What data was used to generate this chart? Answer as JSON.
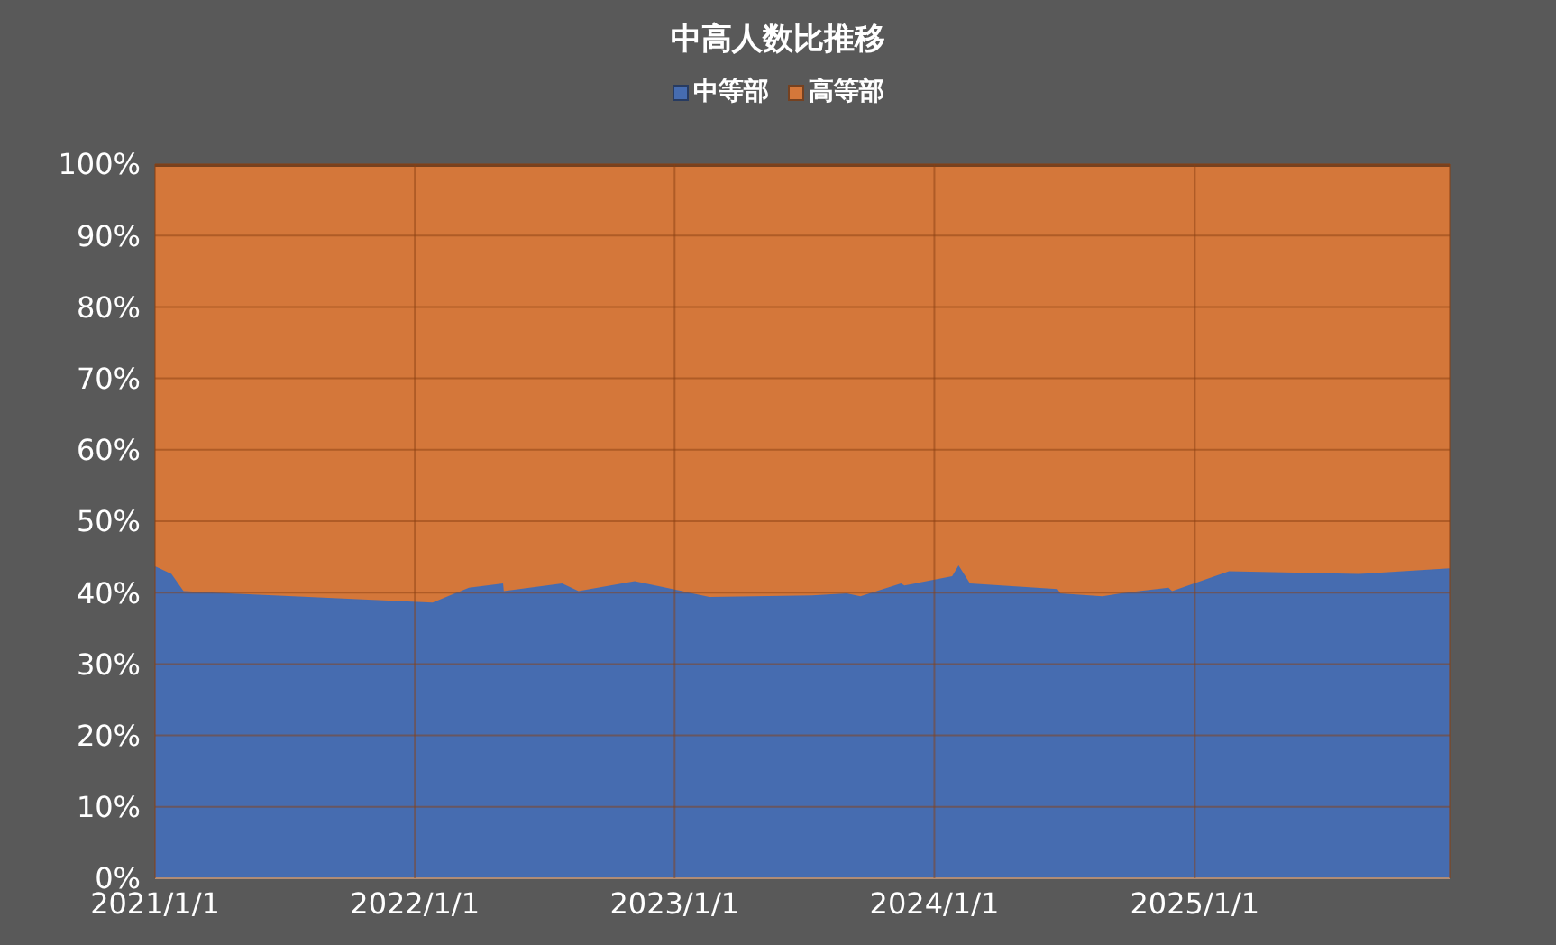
{
  "chart_data": {
    "type": "area",
    "title": "中高人数比推移",
    "stacked": true,
    "grid": true,
    "legend": "top",
    "x": [
      "2021-01-01",
      "2021-01-24",
      "2021-02-10",
      "2022-01-26",
      "2022-03-18",
      "2022-05-05",
      "2022-05-06",
      "2022-07-27",
      "2022-08-19",
      "2022-11-06",
      "2023-02-19",
      "2023-07-13",
      "2023-08-31",
      "2023-09-19",
      "2023-11-15",
      "2023-11-20",
      "2024-01-26",
      "2024-02-04",
      "2024-02-20",
      "2024-06-22",
      "2024-06-26",
      "2024-08-24",
      "2024-09-19",
      "2024-11-25",
      "2024-11-30",
      "2025-02-18",
      "2025-08-19",
      "2025-12-25"
    ],
    "series": [
      {
        "name": "中等部",
        "color": "#466cb0",
        "values": [
          43.7,
          42.6,
          40.2,
          38.6,
          40.7,
          41.3,
          40.2,
          41.3,
          40.2,
          41.6,
          39.4,
          39.6,
          39.9,
          39.5,
          41.3,
          41.0,
          42.3,
          43.8,
          41.3,
          40.5,
          39.9,
          39.5,
          39.9,
          40.7,
          40.2,
          43.0,
          42.6,
          43.4
        ]
      },
      {
        "name": "高等部",
        "color": "#d4773a",
        "values": [
          56.3,
          57.4,
          59.8,
          61.4,
          59.3,
          58.7,
          59.8,
          58.7,
          59.8,
          58.4,
          60.6,
          60.4,
          60.1,
          60.5,
          58.7,
          59.0,
          57.7,
          56.2,
          58.7,
          59.5,
          60.1,
          60.5,
          60.1,
          59.3,
          59.8,
          57.0,
          57.4,
          56.6
        ]
      }
    ],
    "xlim": [
      "2021-01-01",
      "2025-12-25"
    ],
    "xticks": [
      {
        "value": "2021-01-01",
        "label": "2021/1/1"
      },
      {
        "value": "2022-01-01",
        "label": "2022/1/1"
      },
      {
        "value": "2023-01-01",
        "label": "2023/1/1"
      },
      {
        "value": "2024-01-01",
        "label": "2024/1/1"
      },
      {
        "value": "2025-01-01",
        "label": "2025/1/1"
      }
    ],
    "ylim": [
      0,
      100
    ],
    "yticks": [
      {
        "value": 0,
        "label": "0%"
      },
      {
        "value": 10,
        "label": "10%"
      },
      {
        "value": 20,
        "label": "20%"
      },
      {
        "value": 30,
        "label": "30%"
      },
      {
        "value": 40,
        "label": "40%"
      },
      {
        "value": 50,
        "label": "50%"
      },
      {
        "value": 60,
        "label": "60%"
      },
      {
        "value": 70,
        "label": "70%"
      },
      {
        "value": 80,
        "label": "80%"
      },
      {
        "value": 90,
        "label": "90%"
      },
      {
        "value": 100,
        "label": "100%"
      }
    ]
  }
}
